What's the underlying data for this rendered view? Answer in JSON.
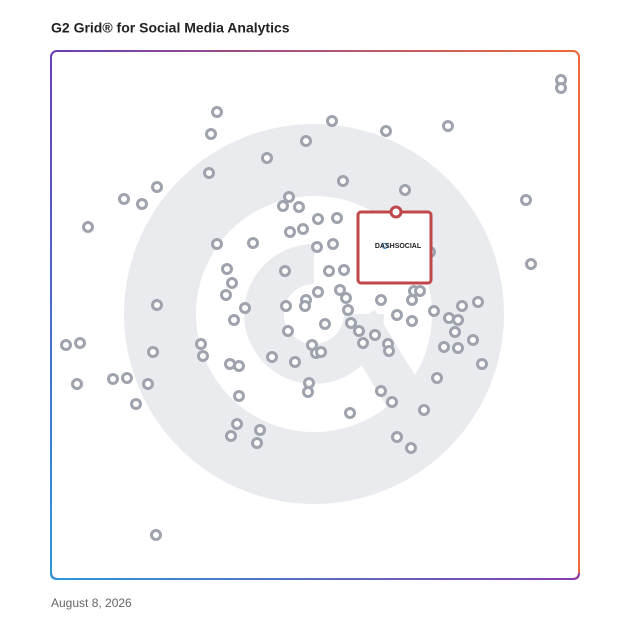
{
  "chart_data": {
    "type": "scatter",
    "title": "G2 Grid® for Social Media Analytics",
    "date": "August 8, 2026",
    "xlim": [
      0,
      528
    ],
    "ylim": [
      0,
      528
    ],
    "color": "#9ea3ad",
    "x": [
      510,
      510,
      166,
      160,
      281,
      335,
      397,
      255,
      216,
      158,
      106,
      73,
      91,
      37,
      292,
      354,
      238,
      232,
      248,
      267,
      286,
      239,
      252,
      266,
      282,
      166,
      202,
      475,
      480,
      379,
      176,
      181,
      175,
      234,
      278,
      293,
      106,
      194,
      183,
      235,
      255,
      254,
      267,
      289,
      295,
      297,
      330,
      361,
      363,
      369,
      346,
      361,
      383,
      398,
      407,
      411,
      427,
      404,
      393,
      407,
      422,
      431,
      386,
      373,
      341,
      330,
      360,
      346,
      299,
      274,
      300,
      308,
      324,
      312,
      337,
      338,
      237,
      261,
      265,
      270,
      244,
      221,
      258,
      257,
      188,
      179,
      188,
      186,
      209,
      180,
      206,
      150,
      152,
      102,
      15,
      29,
      26,
      62,
      76,
      97,
      85,
      105
    ],
    "values": [
      499,
      491,
      467,
      445,
      458,
      448,
      453,
      438,
      421,
      406,
      392,
      380,
      375,
      352,
      398,
      389,
      382,
      373,
      372,
      360,
      361,
      347,
      350,
      332,
      335,
      335,
      336,
      379,
      315,
      327,
      310,
      296,
      284,
      308,
      308,
      309,
      274,
      271,
      259,
      273,
      279,
      273,
      287,
      289,
      281,
      269,
      279,
      279,
      288,
      288,
      264,
      258,
      268,
      261,
      259,
      273,
      277,
      247,
      232,
      231,
      239,
      215,
      201,
      169,
      177,
      188,
      131,
      142,
      166,
      255,
      256,
      248,
      244,
      236,
      235,
      228,
      248,
      234,
      226,
      227,
      217,
      222,
      196,
      187,
      213,
      215,
      183,
      155,
      149,
      143,
      136,
      235,
      223,
      227,
      234,
      236,
      195,
      200,
      201,
      195,
      175,
      44
    ],
    "highlight": {
      "x": 345,
      "y": 367,
      "label": "DASHSOCIAL",
      "color": "#c0474a"
    }
  }
}
